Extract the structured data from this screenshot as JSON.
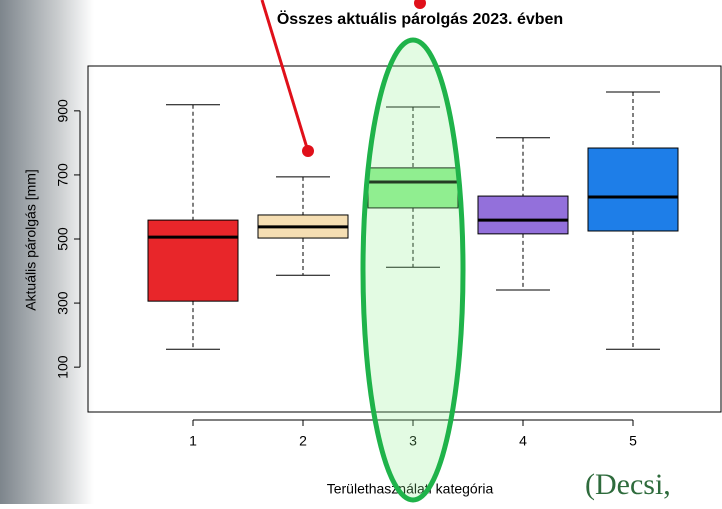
{
  "chart_data": {
    "type": "boxplot",
    "title": "Összes aktuális párolgás 2023. évben",
    "x_label": "Területhasználati kategória",
    "y_label": "Aktuális párolgás [mm]",
    "categories": [
      "1",
      "2",
      "3",
      "4",
      "5"
    ],
    "boxes": [
      {
        "min": 156,
        "q1": 306,
        "median": 506,
        "q3": 559,
        "max": 919,
        "color": "#e8262a"
      },
      {
        "min": 387,
        "q1": 503,
        "median": 538,
        "q3": 575,
        "max": 694,
        "color": "#f5deb3"
      },
      {
        "min": 412,
        "q1": 597,
        "median": 678,
        "q3": 722,
        "max": 912,
        "color": "#90ee90"
      },
      {
        "min": 341,
        "q1": 516,
        "median": 559,
        "q3": 634,
        "max": 816,
        "color": "#9370db"
      },
      {
        "min": 156,
        "q1": 525,
        "median": 631,
        "q3": 784,
        "max": 959,
        "color": "#1e7ee8"
      }
    ],
    "ylim": [
      -40,
      1040
    ],
    "yticks": [
      100,
      300,
      500,
      700,
      900
    ],
    "annotation": "(Decsi,"
  }
}
